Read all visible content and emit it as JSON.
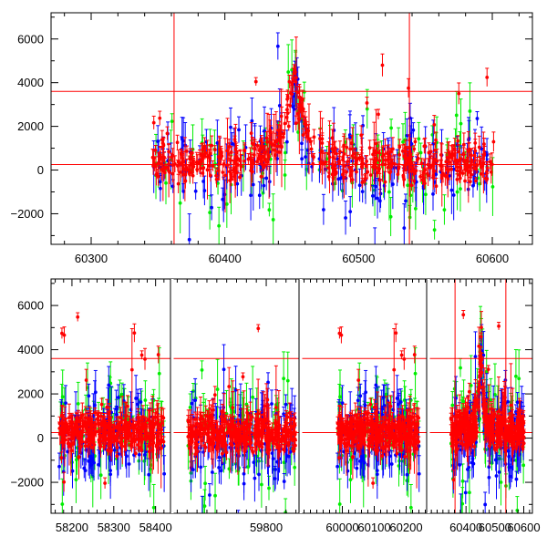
{
  "chart_data": [
    {
      "type": "scatter",
      "title": "",
      "xlabel": "",
      "ylabel": "",
      "xlim": [
        60270,
        60630
      ],
      "ylim": [
        -3400,
        7200
      ],
      "x_ticks": [
        60300,
        60400,
        60500,
        60600
      ],
      "y_ticks": [
        -2000,
        0,
        2000,
        4000,
        6000
      ],
      "grid": false,
      "series_colors": {
        "red": "#ff0000",
        "green": "#00ee00",
        "blue": "#0000ff"
      },
      "reference_lines": {
        "horizontal": [
          3600,
          250
        ],
        "vertical": [
          60362,
          60538
        ]
      },
      "point_envelope": [
        {
          "x": 60346,
          "y": 200
        },
        {
          "x": 60370,
          "y": 300
        },
        {
          "x": 60400,
          "y": 400
        },
        {
          "x": 60420,
          "y": 700
        },
        {
          "x": 60440,
          "y": 2000
        },
        {
          "x": 60452,
          "y": 4200
        },
        {
          "x": 60460,
          "y": 2600
        },
        {
          "x": 60475,
          "y": 900
        },
        {
          "x": 60500,
          "y": 350
        },
        {
          "x": 60530,
          "y": 250
        },
        {
          "x": 60560,
          "y": 200
        },
        {
          "x": 60600,
          "y": 150
        }
      ]
    },
    {
      "type": "scatter",
      "title": "",
      "xlabel": "",
      "ylabel": "",
      "segments": [
        {
          "xlim": [
            58150,
            58440
          ],
          "x_ticks": [
            58200,
            58300,
            58400
          ]
        },
        {
          "xlim": [
            59610,
            59870
          ],
          "x_ticks": [
            59800
          ]
        },
        {
          "xlim": [
            59870,
            60270
          ],
          "x_ticks": [
            60000,
            60100,
            60200
          ]
        },
        {
          "xlim": [
            60270,
            60630
          ],
          "x_ticks": [
            60400,
            60500,
            60600
          ]
        }
      ],
      "ylim": [
        -3400,
        7200
      ],
      "y_ticks": [
        -2000,
        0,
        2000,
        4000,
        6000
      ],
      "grid": false,
      "reference_lines": {
        "horizontal": [
          3600,
          250
        ],
        "vertical": [
          60362,
          60538
        ]
      },
      "segment_data_ranges": [
        [
          58170,
          58420
        ],
        [
          59640,
          59860
        ],
        [
          59985,
          60240
        ],
        [
          60346,
          60602
        ]
      ],
      "flare_peak": {
        "x": 60452,
        "y": 4200
      }
    }
  ]
}
